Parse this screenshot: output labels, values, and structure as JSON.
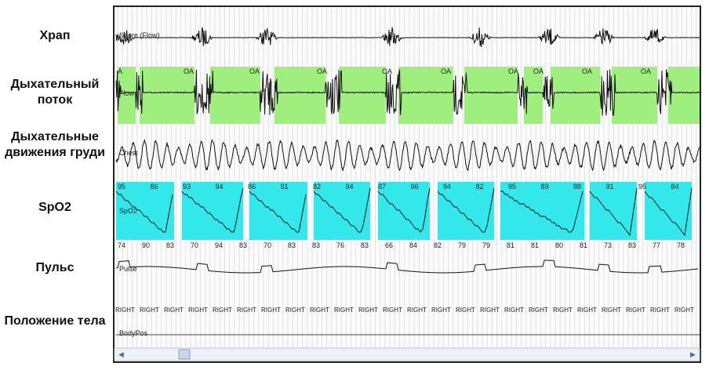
{
  "labels": [
    "Храп",
    "Дыхательный поток",
    "Дыхательные движения груди",
    "SpO2",
    "Пульс",
    "Положение тела"
  ],
  "channels": [
    "Snore (Flow)",
    "Flow",
    "Chest",
    "SpO2",
    "Pulse",
    "BodyPos"
  ],
  "events": [
    "A",
    "OA",
    "OA",
    "OA",
    "OA",
    "OA",
    "OA",
    "OA",
    "OA",
    "OA"
  ],
  "spo2_top": [
    "95",
    "86",
    "93",
    "94",
    "86",
    "91",
    "82",
    "94",
    "87",
    "96",
    "94",
    "82",
    "95",
    "89",
    "88",
    "91",
    "95",
    "84"
  ],
  "spo2_bottom": [
    "74",
    "90",
    "83",
    "70",
    "94",
    "83",
    "70",
    "83",
    "83",
    "76",
    "83",
    "66",
    "84",
    "82",
    "79",
    "79",
    "81",
    "81",
    "80",
    "81",
    "73",
    "83",
    "77",
    "78"
  ],
  "positions": [
    "RIGHT",
    "RIGHT",
    "RIGHT",
    "RIGHT",
    "RIGHT",
    "RIGHT",
    "RIGHT",
    "RIGHT",
    "RIGHT",
    "RIGHT",
    "RIGHT",
    "RIGHT",
    "RIGHT",
    "RIGHT",
    "RIGHT",
    "RIGHT",
    "RIGHT",
    "RIGHT",
    "RIGHT",
    "RIGHT",
    "RIGHT",
    "RIGHT",
    "RIGHT",
    "RIGHT"
  ]
}
